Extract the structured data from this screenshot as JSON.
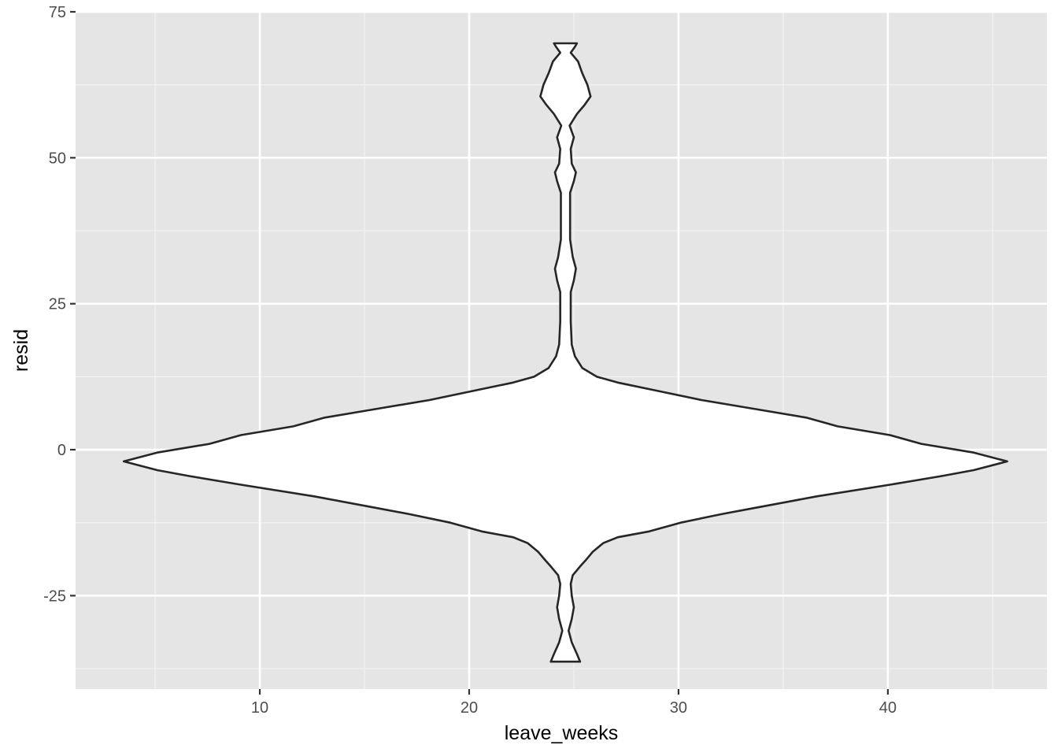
{
  "chart_data": {
    "type": "violin",
    "title": "",
    "xlabel": "leave_weeks",
    "ylabel": "resid",
    "xlim": [
      1.2,
      47.6
    ],
    "ylim": [
      -41.0,
      75.0
    ],
    "x_ticks": [
      10,
      20,
      30,
      40
    ],
    "x_minor": [
      5,
      15,
      25,
      35,
      45
    ],
    "y_ticks": [
      -25,
      0,
      25,
      50,
      75
    ],
    "y_minor": [
      -37.5,
      -12.5,
      12.5,
      37.5,
      62.5
    ],
    "grid": true,
    "legend": "none",
    "violin": {
      "center_x": 24.6,
      "y_min": -36.3,
      "y_max": 69.6,
      "profile": [
        {
          "y": -36.3,
          "half_width": 0.7
        },
        {
          "y": -35.0,
          "half_width": 0.55
        },
        {
          "y": -33.0,
          "half_width": 0.3
        },
        {
          "y": -31.0,
          "half_width": 0.15
        },
        {
          "y": -29.0,
          "half_width": 0.3
        },
        {
          "y": -27.0,
          "half_width": 0.4
        },
        {
          "y": -25.0,
          "half_width": 0.3
        },
        {
          "y": -23.0,
          "half_width": 0.25
        },
        {
          "y": -21.5,
          "half_width": 0.35
        },
        {
          "y": -20.0,
          "half_width": 0.7
        },
        {
          "y": -19.0,
          "half_width": 0.95
        },
        {
          "y": -17.5,
          "half_width": 1.3
        },
        {
          "y": -16.0,
          "half_width": 1.8
        },
        {
          "y": -15.0,
          "half_width": 2.5
        },
        {
          "y": -14.0,
          "half_width": 4.0
        },
        {
          "y": -12.5,
          "half_width": 5.5
        },
        {
          "y": -11.0,
          "half_width": 7.5
        },
        {
          "y": -10.0,
          "half_width": 9.0
        },
        {
          "y": -8.0,
          "half_width": 12.0
        },
        {
          "y": -6.0,
          "half_width": 15.5
        },
        {
          "y": -4.5,
          "half_width": 18.0
        },
        {
          "y": -3.5,
          "half_width": 19.5
        },
        {
          "y": -2.0,
          "half_width": 21.1
        },
        {
          "y": -0.5,
          "half_width": 19.5
        },
        {
          "y": 1.0,
          "half_width": 17.0
        },
        {
          "y": 2.5,
          "half_width": 15.5
        },
        {
          "y": 4.0,
          "half_width": 13.0
        },
        {
          "y": 5.5,
          "half_width": 11.5
        },
        {
          "y": 7.0,
          "half_width": 9.0
        },
        {
          "y": 8.5,
          "half_width": 6.5
        },
        {
          "y": 10.0,
          "half_width": 4.5
        },
        {
          "y": 11.5,
          "half_width": 2.5
        },
        {
          "y": 12.5,
          "half_width": 1.5
        },
        {
          "y": 14.0,
          "half_width": 0.8
        },
        {
          "y": 16.0,
          "half_width": 0.45
        },
        {
          "y": 18.0,
          "half_width": 0.3
        },
        {
          "y": 22.0,
          "half_width": 0.25
        },
        {
          "y": 27.0,
          "half_width": 0.25
        },
        {
          "y": 29.0,
          "half_width": 0.4
        },
        {
          "y": 31.0,
          "half_width": 0.5
        },
        {
          "y": 33.0,
          "half_width": 0.35
        },
        {
          "y": 36.0,
          "half_width": 0.22
        },
        {
          "y": 44.0,
          "half_width": 0.22
        },
        {
          "y": 46.0,
          "half_width": 0.4
        },
        {
          "y": 47.5,
          "half_width": 0.5
        },
        {
          "y": 49.0,
          "half_width": 0.3
        },
        {
          "y": 51.5,
          "half_width": 0.25
        },
        {
          "y": 53.5,
          "half_width": 0.4
        },
        {
          "y": 55.5,
          "half_width": 0.2
        },
        {
          "y": 57.5,
          "half_width": 0.55
        },
        {
          "y": 59.0,
          "half_width": 0.9
        },
        {
          "y": 60.5,
          "half_width": 1.2
        },
        {
          "y": 62.5,
          "half_width": 1.05
        },
        {
          "y": 64.5,
          "half_width": 0.8
        },
        {
          "y": 66.5,
          "half_width": 0.6
        },
        {
          "y": 68.0,
          "half_width": 0.25
        },
        {
          "y": 69.0,
          "half_width": 0.45
        },
        {
          "y": 69.6,
          "half_width": 0.55
        }
      ]
    },
    "colors": {
      "panel": "#e5e5e5",
      "grid_major": "#ffffff",
      "grid_minor": "#f2f2f2",
      "violin_fill": "#ffffff",
      "violin_stroke": "#262626",
      "tick_text": "#4d4d4d",
      "tick_mark": "#333333"
    }
  }
}
